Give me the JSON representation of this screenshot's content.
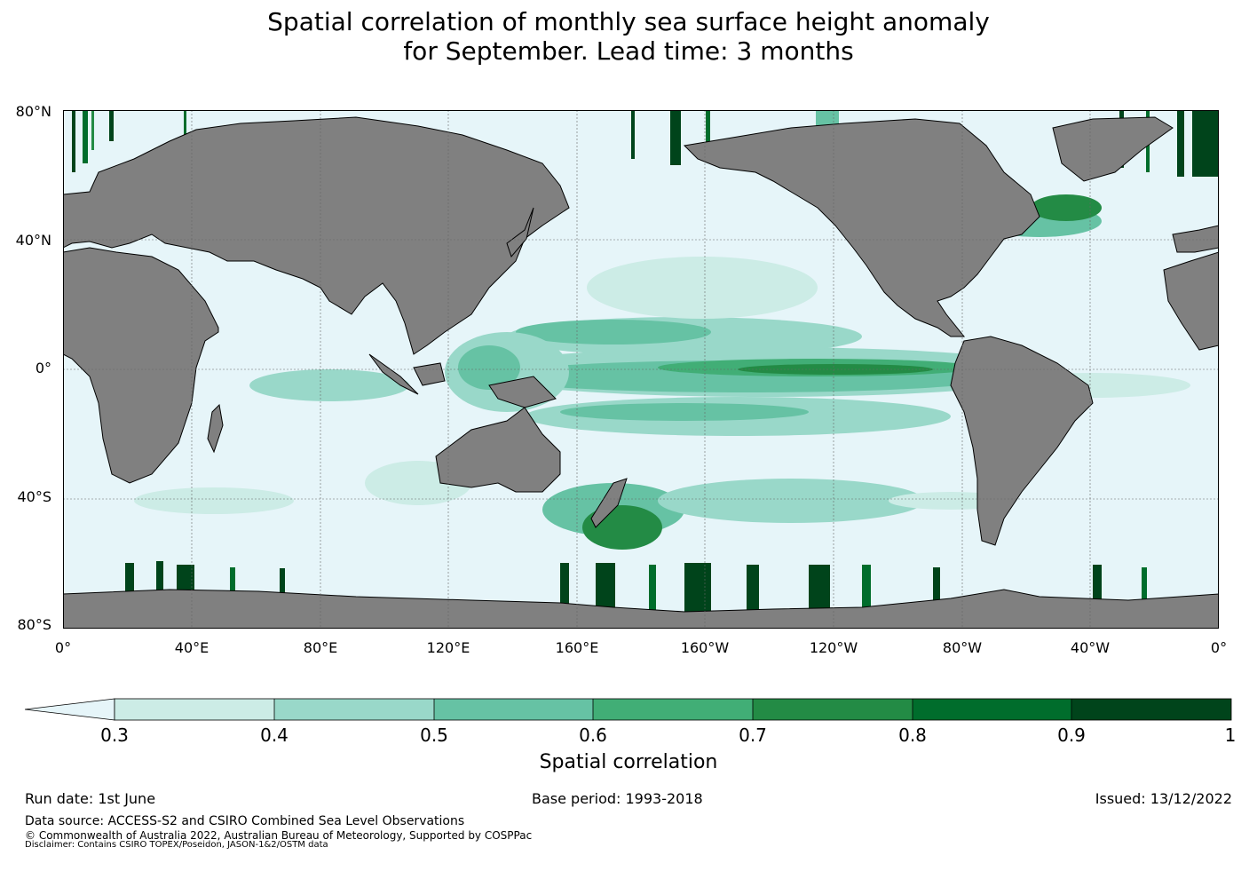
{
  "title_line1": "Spatial correlation of monthly sea surface height anomaly",
  "title_line2": "for September. Lead time: 3 months",
  "lat_labels": [
    "80°N",
    "40°N",
    "0°",
    "40°S",
    "80°S"
  ],
  "lon_labels": [
    "0°",
    "40°E",
    "80°E",
    "120°E",
    "160°E",
    "160°W",
    "120°W",
    "80°W",
    "40°W",
    "0°"
  ],
  "colorbar": {
    "ticks": [
      "0.3",
      "0.4",
      "0.5",
      "0.6",
      "0.7",
      "0.8",
      "0.9",
      "1"
    ],
    "colors": [
      "#e6f5f9",
      "#ccece6",
      "#99d8c9",
      "#66c2a4",
      "#41ae76",
      "#238b45",
      "#006d2c",
      "#00441b"
    ],
    "label": "Spatial correlation"
  },
  "colors": {
    "land": "#808080",
    "ocean_low": "#e6f5f9",
    "coast": "#000000"
  },
  "footer": {
    "run_date": "Run date: 1st June",
    "base_period": "Base period: 1993-2018",
    "issued": "Issued: 13/12/2022",
    "data_source": "Data source: ACCESS-S2 and CSIRO Combined Sea Level Observations",
    "copyright": "© Commonwealth of Australia 2022, Australian Bureau of Meteorology, Supported by COSPPac",
    "disclaimer": "Disclaimer: Contains CSIRO TOPEX/Poseidon, JASON-1&2/OSTM data"
  }
}
